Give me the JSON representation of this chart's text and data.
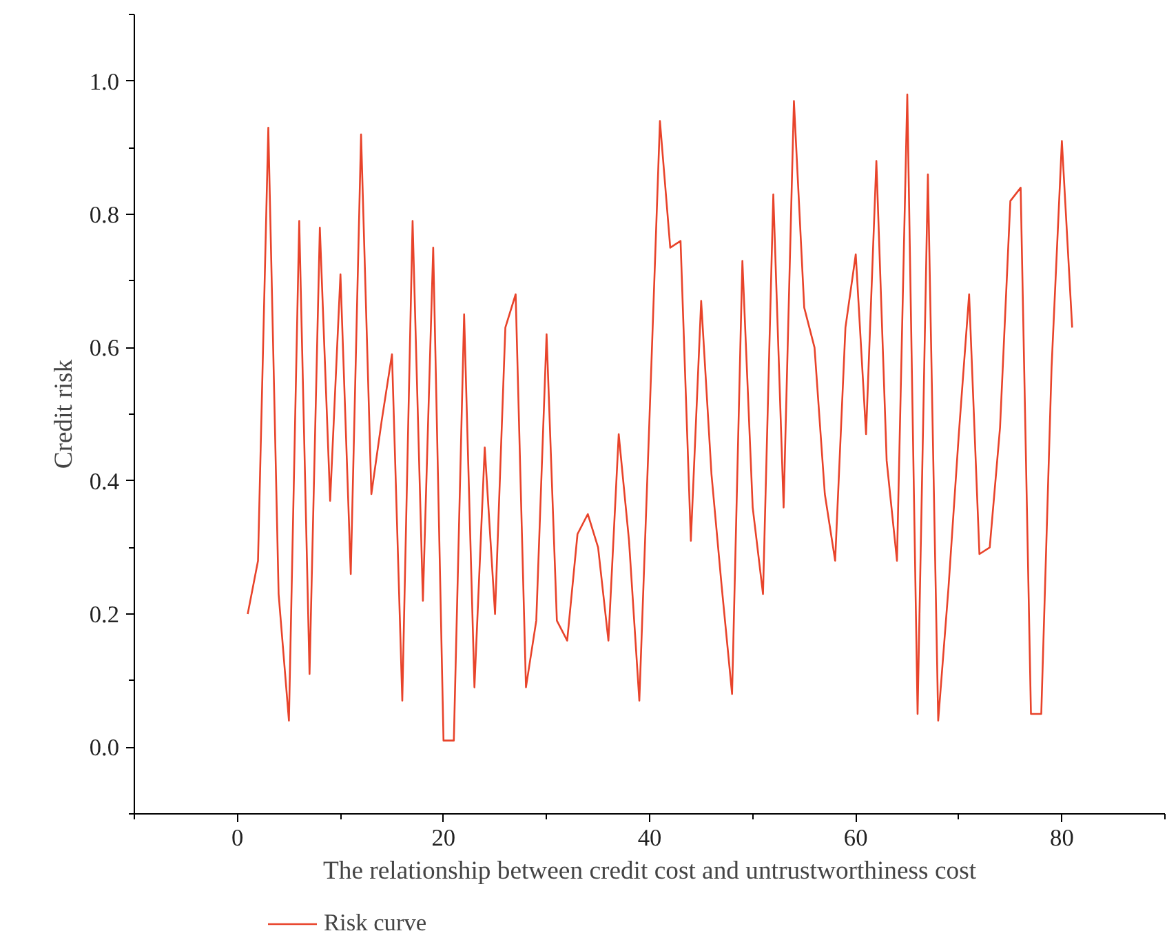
{
  "chart_data": {
    "type": "line",
    "xlabel": "The relationship between credit cost and untrustworthiness cost",
    "ylabel": "Credit risk",
    "x": [
      1,
      2,
      3,
      4,
      5,
      6,
      7,
      8,
      9,
      10,
      11,
      12,
      13,
      14,
      15,
      16,
      17,
      18,
      19,
      20,
      21,
      22,
      23,
      24,
      25,
      26,
      27,
      28,
      29,
      30,
      31,
      32,
      33,
      34,
      35,
      36,
      37,
      38,
      39,
      40,
      41,
      42,
      43,
      44,
      45,
      46,
      47,
      48,
      49,
      50,
      51,
      52,
      53,
      54,
      55,
      56,
      57,
      58,
      59,
      60,
      61,
      62,
      63,
      64,
      65,
      66,
      67,
      68,
      69,
      70,
      71,
      72,
      73,
      74,
      75,
      76,
      77,
      78,
      79,
      80,
      81
    ],
    "series": [
      {
        "name": "Risk curve",
        "color": "#e8432a",
        "values": [
          0.2,
          0.28,
          0.93,
          0.23,
          0.04,
          0.79,
          0.11,
          0.78,
          0.37,
          0.71,
          0.26,
          0.92,
          0.38,
          0.49,
          0.59,
          0.07,
          0.79,
          0.22,
          0.75,
          0.01,
          0.01,
          0.65,
          0.09,
          0.45,
          0.2,
          0.63,
          0.68,
          0.09,
          0.19,
          0.62,
          0.19,
          0.16,
          0.32,
          0.35,
          0.3,
          0.16,
          0.47,
          0.31,
          0.07,
          0.5,
          0.94,
          0.75,
          0.76,
          0.31,
          0.67,
          0.41,
          0.24,
          0.08,
          0.73,
          0.36,
          0.23,
          0.83,
          0.36,
          0.97,
          0.66,
          0.6,
          0.38,
          0.28,
          0.63,
          0.74,
          0.47,
          0.88,
          0.43,
          0.28,
          0.98,
          0.05,
          0.86,
          0.04,
          0.24,
          0.47,
          0.68,
          0.29,
          0.3,
          0.48,
          0.82,
          0.84,
          0.05,
          0.05,
          0.57,
          0.91,
          0.63
        ]
      }
    ],
    "xlim": [
      -10,
      90
    ],
    "ylim": [
      -0.1,
      1.1
    ],
    "xticks": [
      0,
      20,
      40,
      60,
      80
    ],
    "yticks": [
      {
        "value": 0,
        "label": "0.0"
      },
      {
        "value": 0.2,
        "label": "0.2"
      },
      {
        "value": 0.4,
        "label": "0.4"
      },
      {
        "value": 0.6,
        "label": "0.6"
      },
      {
        "value": 0.8,
        "label": "0.8"
      },
      {
        "value": 1.0,
        "label": "1.0"
      }
    ],
    "grid": false,
    "legend": "bottom left",
    "marker": "none",
    "line_style": "solid"
  }
}
